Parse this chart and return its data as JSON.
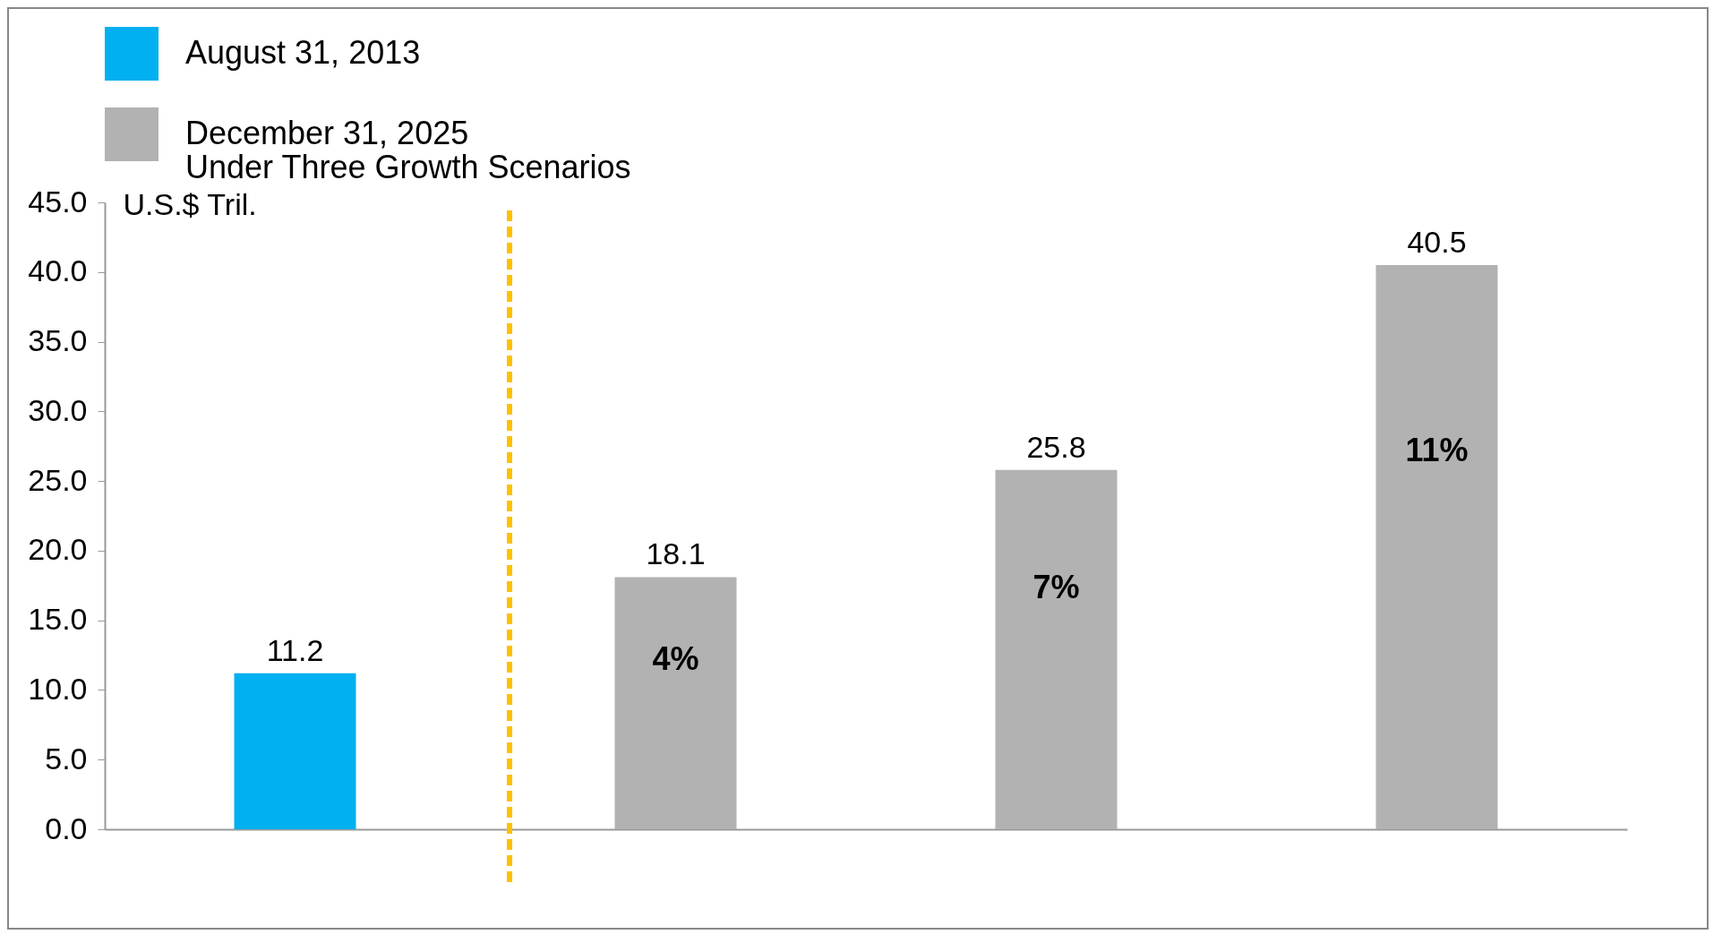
{
  "chart_data": {
    "type": "bar",
    "ylabel": "U.S.$ Tril.",
    "categories": [
      null,
      null,
      null,
      null
    ],
    "series": [
      {
        "name": "August 31, 2013",
        "color": "#00b0f0",
        "values": [
          11.2,
          null,
          null,
          null
        ]
      },
      {
        "name": "December 31, 2025\nUnder Three Growth Scenarios",
        "color": "#b2b2b2",
        "values": [
          null,
          18.1,
          25.8,
          40.5
        ]
      }
    ],
    "ylim": [
      0,
      45
    ],
    "yticks": [
      {
        "value": 0,
        "label": "0.0"
      },
      {
        "value": 5,
        "label": "5.0"
      },
      {
        "value": 10,
        "label": "10.0"
      },
      {
        "value": 15,
        "label": "15.0"
      },
      {
        "value": 20,
        "label": "20.0"
      },
      {
        "value": 25,
        "label": "25.0"
      },
      {
        "value": 30,
        "label": "30.0"
      },
      {
        "value": 35,
        "label": "35.0"
      },
      {
        "value": 40,
        "label": "40.0"
      },
      {
        "value": 45,
        "label": "45.0"
      }
    ],
    "data_labels": true,
    "legend": "top",
    "tick_labels": "y",
    "grid": false,
    "annotations": [
      "4%",
      "7%",
      "11%"
    ]
  }
}
